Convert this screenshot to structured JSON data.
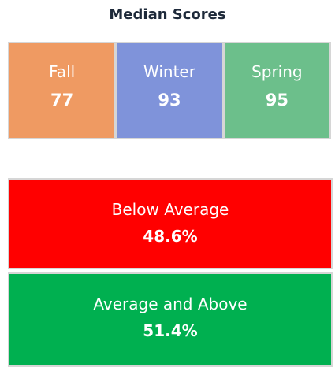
{
  "title": "Median Scores",
  "tiles": [
    {
      "label": "Fall",
      "value": 77,
      "color": "#ef9a62"
    },
    {
      "label": "Winter",
      "value": 93,
      "color": "#7f93da"
    },
    {
      "label": "Spring",
      "value": 95,
      "color": "#6cbf8b"
    }
  ],
  "bands": [
    {
      "label": "Below Average",
      "value": "48.6%",
      "color": "#ff0000"
    },
    {
      "label": "Average and Above",
      "value": "51.4%",
      "color": "#00b050"
    }
  ]
}
